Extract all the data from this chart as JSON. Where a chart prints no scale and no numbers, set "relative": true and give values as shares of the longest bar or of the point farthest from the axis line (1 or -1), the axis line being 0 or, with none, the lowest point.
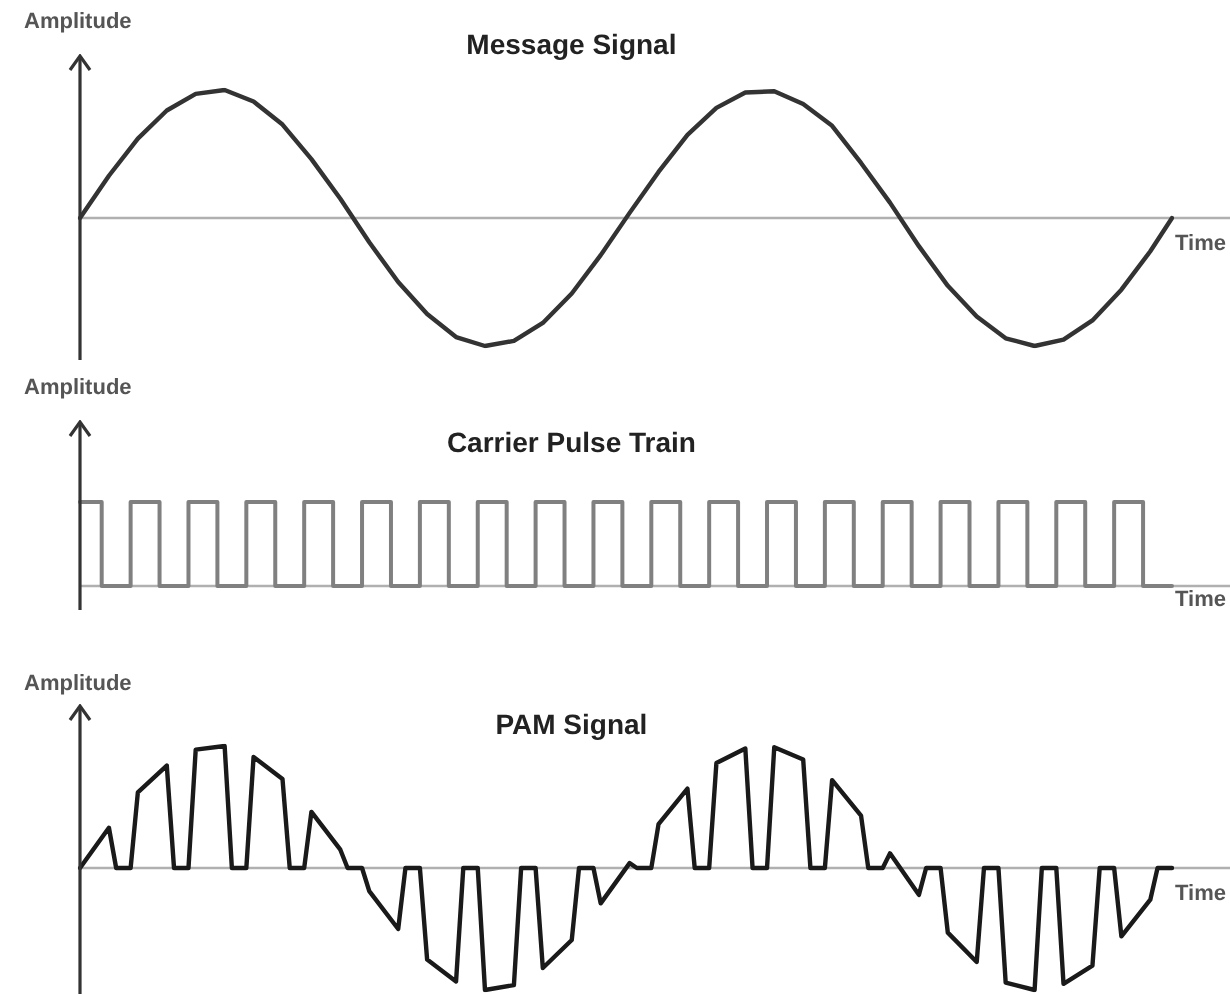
{
  "chart_data": [
    {
      "type": "line",
      "title": "Message Signal",
      "xlabel": "Time",
      "ylabel": "Amplitude",
      "relative": true,
      "legend": false,
      "tick_labels": false,
      "marker": "none",
      "categories": [
        null,
        null,
        null,
        null,
        null,
        null,
        null,
        null,
        null,
        null,
        null,
        null,
        null,
        null,
        null,
        null,
        null,
        null,
        null,
        null,
        null,
        null,
        null,
        null,
        null,
        null,
        null,
        null,
        null,
        null,
        null,
        null,
        null,
        null,
        null,
        null,
        null,
        null,
        null,
        null,
        null,
        null,
        null,
        null,
        null,
        null,
        null,
        null,
        null,
        null,
        null,
        null,
        null,
        null,
        null,
        null,
        null,
        null,
        null,
        null,
        null,
        null,
        null,
        null,
        null,
        null,
        null,
        null,
        null,
        null,
        null,
        null,
        null,
        null,
        null,
        null,
        null,
        null,
        null,
        null,
        null,
        null,
        null,
        null,
        null,
        null,
        null,
        null,
        null,
        null,
        null,
        null,
        null,
        null,
        null,
        null,
        null,
        null,
        null,
        null,
        null,
        null,
        null,
        null,
        null,
        null,
        null,
        null,
        null,
        null,
        null,
        null,
        null,
        null,
        null,
        null,
        null,
        null,
        null,
        null,
        null,
        null,
        null,
        null,
        null,
        null,
        null,
        null,
        null,
        null,
        null,
        null,
        null,
        null,
        null,
        null,
        null,
        null,
        null,
        null,
        null,
        null,
        null,
        null,
        null,
        null,
        null,
        null,
        null,
        null,
        null,
        null
      ],
      "series": [
        {
          "color": "#333333",
          "values": [
            0,
            null,
            null,
            null,
            0.33,
            null,
            null,
            null,
            0.62,
            null,
            null,
            null,
            0.84,
            null,
            null,
            null,
            0.97,
            null,
            null,
            null,
            1.0,
            null,
            null,
            null,
            0.91,
            null,
            null,
            null,
            0.73,
            null,
            null,
            null,
            0.46,
            null,
            null,
            null,
            0.15,
            null,
            null,
            null,
            -0.19,
            null,
            null,
            null,
            -0.5,
            null,
            null,
            null,
            -0.75,
            null,
            null,
            null,
            -0.93,
            null,
            null,
            null,
            -1.0,
            null,
            null,
            null,
            -0.96,
            null,
            null,
            null,
            -0.82,
            null,
            null,
            null,
            -0.59,
            null,
            null,
            null,
            -0.29,
            null,
            null,
            null,
            0.04,
            null,
            null,
            null,
            0.36,
            null,
            null,
            null,
            0.65,
            null,
            null,
            null,
            0.86,
            null,
            null,
            null,
            0.98,
            null,
            null,
            null,
            0.99,
            null,
            null,
            null,
            0.89,
            null,
            null,
            null,
            0.72,
            null,
            null,
            null,
            0.43,
            null,
            null,
            null,
            0.12,
            null,
            null,
            null,
            -0.22,
            null,
            null,
            null,
            -0.53,
            null,
            null,
            null,
            -0.77,
            null,
            null,
            null,
            -0.94,
            null,
            null,
            null,
            -1.0,
            null,
            null,
            null,
            -0.95,
            null,
            null,
            null,
            -0.8,
            null,
            null,
            null,
            -0.56,
            null,
            null,
            null,
            -0.26,
            null,
            null,
            0
          ]
        }
      ]
    },
    {
      "type": "step",
      "title": "Carrier Pulse Train",
      "xlabel": "Time",
      "ylabel": "Amplitude",
      "relative": true,
      "legend": false,
      "tick_labels": false,
      "marker": "none",
      "categories": [
        null,
        null,
        null,
        null,
        null,
        null,
        null,
        null,
        null,
        null,
        null,
        null,
        null,
        null,
        null,
        null,
        null,
        null,
        null,
        null,
        null,
        null,
        null,
        null,
        null,
        null,
        null,
        null,
        null,
        null,
        null,
        null,
        null,
        null,
        null,
        null,
        null,
        null,
        null,
        null,
        null,
        null,
        null,
        null,
        null,
        null,
        null,
        null,
        null,
        null,
        null,
        null,
        null,
        null,
        null,
        null,
        null,
        null,
        null,
        null,
        null,
        null,
        null,
        null,
        null,
        null,
        null,
        null,
        null,
        null,
        null,
        null,
        null,
        null,
        null,
        null,
        null,
        null,
        null,
        null,
        null,
        null,
        null,
        null,
        null,
        null,
        null,
        null,
        null,
        null,
        null,
        null,
        null,
        null,
        null,
        null,
        null,
        null,
        null,
        null,
        null,
        null,
        null,
        null,
        null,
        null,
        null,
        null,
        null,
        null,
        null,
        null,
        null,
        null,
        null,
        null,
        null,
        null,
        null,
        null,
        null,
        null,
        null,
        null,
        null,
        null,
        null,
        null,
        null,
        null,
        null,
        null,
        null,
        null,
        null,
        null,
        null,
        null,
        null,
        null,
        null,
        null,
        null,
        null,
        null,
        null,
        null,
        null,
        null,
        null,
        null,
        null
      ],
      "series": [
        {
          "color": "#808080",
          "values": [
            1,
            1,
            1,
            1,
            0,
            0,
            0,
            0,
            1,
            1,
            1,
            1,
            0,
            0,
            0,
            0,
            1,
            1,
            1,
            1,
            0,
            0,
            0,
            0,
            1,
            1,
            1,
            1,
            0,
            0,
            0,
            0,
            1,
            1,
            1,
            1,
            0,
            0,
            0,
            0,
            1,
            1,
            1,
            1,
            0,
            0,
            0,
            0,
            1,
            1,
            1,
            1,
            0,
            0,
            0,
            0,
            1,
            1,
            1,
            1,
            0,
            0,
            0,
            0,
            1,
            1,
            1,
            1,
            0,
            0,
            0,
            0,
            1,
            1,
            1,
            1,
            0,
            0,
            0,
            0,
            1,
            1,
            1,
            1,
            0,
            0,
            0,
            0,
            1,
            1,
            1,
            1,
            0,
            0,
            0,
            0,
            1,
            1,
            1,
            1,
            0,
            0,
            0,
            0,
            1,
            1,
            1,
            1,
            0,
            0,
            0,
            0,
            1,
            1,
            1,
            1,
            0,
            0,
            0,
            0,
            1,
            1,
            1,
            1,
            0,
            0,
            0,
            0,
            1,
            1,
            1,
            1,
            0,
            0,
            0,
            0,
            1,
            1,
            1,
            1,
            0,
            0,
            0,
            0,
            1,
            1,
            1,
            1,
            0,
            0,
            0,
            0
          ]
        }
      ]
    },
    {
      "type": "line",
      "title": "PAM Signal",
      "xlabel": "Time",
      "ylabel": "Amplitude",
      "relative": true,
      "legend": false,
      "tick_labels": false,
      "marker": "none",
      "categories": [
        null,
        null,
        null,
        null,
        null,
        null,
        null,
        null,
        null,
        null,
        null,
        null,
        null,
        null,
        null,
        null,
        null,
        null,
        null,
        null,
        null,
        null,
        null,
        null,
        null,
        null,
        null,
        null,
        null,
        null,
        null,
        null,
        null,
        null,
        null,
        null,
        null,
        null,
        null,
        null,
        null,
        null,
        null,
        null,
        null,
        null,
        null,
        null,
        null,
        null,
        null,
        null,
        null,
        null,
        null,
        null,
        null,
        null,
        null,
        null,
        null,
        null,
        null,
        null,
        null,
        null,
        null,
        null,
        null,
        null,
        null,
        null,
        null,
        null,
        null,
        null,
        null,
        null,
        null,
        null,
        null,
        null,
        null,
        null,
        null,
        null,
        null,
        null,
        null,
        null,
        null,
        null,
        null,
        null,
        null,
        null,
        null,
        null,
        null,
        null,
        null,
        null,
        null,
        null,
        null,
        null,
        null,
        null,
        null,
        null,
        null,
        null,
        null,
        null,
        null,
        null,
        null,
        null,
        null,
        null,
        null,
        null,
        null,
        null,
        null,
        null,
        null,
        null,
        null,
        null,
        null,
        null,
        null,
        null,
        null,
        null,
        null,
        null,
        null,
        null,
        null,
        null,
        null,
        null,
        null,
        null,
        null,
        null,
        null,
        null,
        null,
        null
      ],
      "series": [
        {
          "color": "#1a1a1a",
          "values": [
            0,
            null,
            null,
            null,
            0.33,
            0,
            null,
            0,
            0.62,
            null,
            null,
            null,
            0.84,
            0,
            null,
            0,
            0.97,
            null,
            null,
            null,
            1.0,
            0,
            null,
            0,
            0.91,
            null,
            null,
            null,
            0.73,
            0,
            null,
            0,
            0.46,
            null,
            null,
            null,
            0.15,
            0,
            null,
            0,
            -0.19,
            null,
            null,
            null,
            -0.5,
            0,
            null,
            0,
            -0.75,
            null,
            null,
            null,
            -0.93,
            0,
            null,
            0,
            -1.0,
            null,
            null,
            null,
            -0.96,
            0,
            null,
            0,
            -0.82,
            null,
            null,
            null,
            -0.59,
            0,
            null,
            0,
            -0.29,
            null,
            null,
            null,
            0.04,
            0,
            null,
            0,
            0.36,
            null,
            null,
            null,
            0.65,
            0,
            null,
            0,
            0.86,
            null,
            null,
            null,
            0.98,
            0,
            null,
            0,
            0.99,
            null,
            null,
            null,
            0.89,
            0,
            null,
            0,
            0.72,
            null,
            null,
            null,
            0.43,
            0,
            null,
            0,
            0.12,
            null,
            null,
            null,
            -0.22,
            0,
            null,
            0,
            -0.53,
            null,
            null,
            null,
            -0.77,
            0,
            null,
            0,
            -0.94,
            null,
            null,
            null,
            -1.0,
            0,
            null,
            0,
            -0.95,
            null,
            null,
            null,
            -0.8,
            0,
            null,
            0,
            -0.56,
            null,
            null,
            null,
            -0.26,
            0,
            null,
            0
          ]
        }
      ]
    }
  ]
}
